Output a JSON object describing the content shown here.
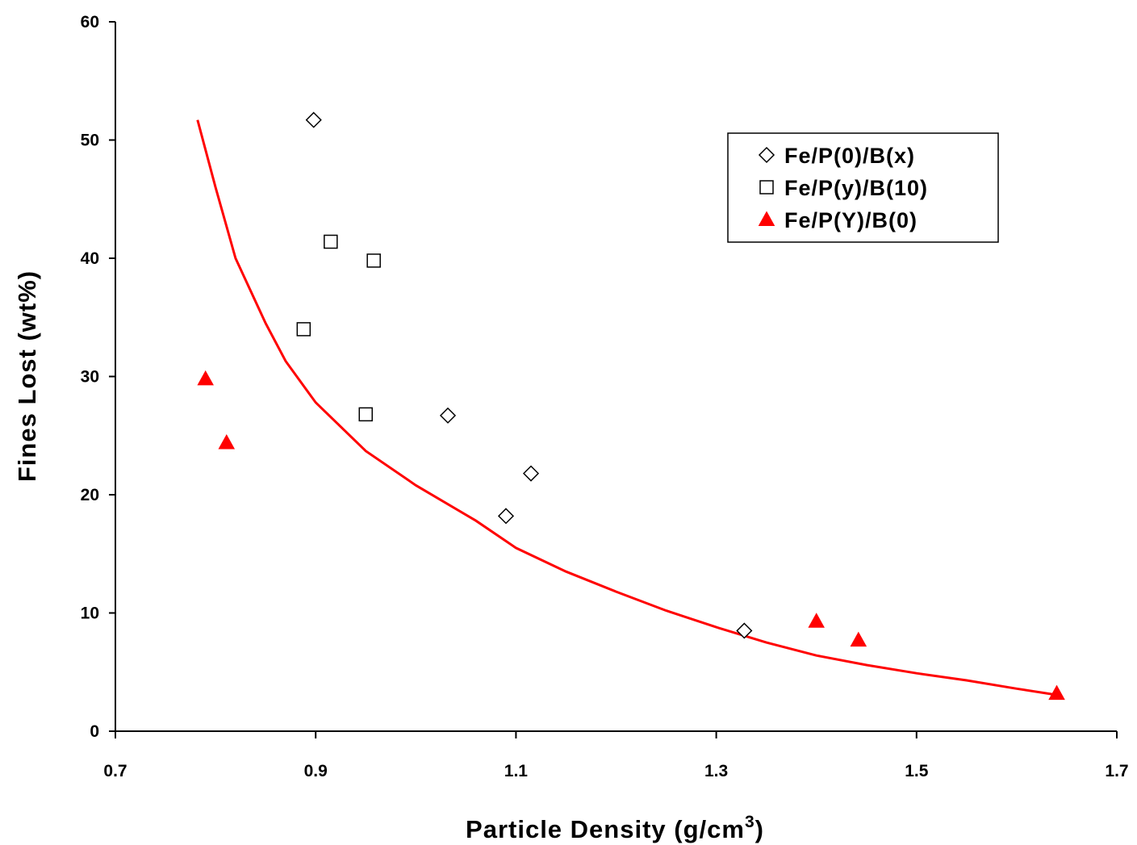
{
  "chart_data": {
    "type": "scatter",
    "title": "",
    "xlabel": "Particle Density (g/cm",
    "xlabel_superscript": "3",
    "xlabel_close": ")",
    "ylabel": "Fines Lost (wt%)",
    "xlim": [
      0.7,
      1.7
    ],
    "ylim": [
      0,
      60
    ],
    "x_ticks": [
      0.7,
      0.9,
      1.1,
      1.3,
      1.5,
      1.7
    ],
    "x_tick_labels": [
      "0.7",
      "0.9",
      "1.1",
      "1.3",
      "1.5",
      "1.7"
    ],
    "y_ticks": [
      0,
      10,
      20,
      30,
      40,
      50,
      60
    ],
    "y_tick_labels": [
      "0",
      "10",
      "20",
      "30",
      "40",
      "50",
      "60"
    ],
    "grid": false,
    "legend_position": "top-right",
    "series": [
      {
        "name": "Fe/P(0)/B(x)",
        "marker": "diamond",
        "color": "#000000",
        "filled": false,
        "points": [
          [
            0.898,
            51.7
          ],
          [
            1.032,
            26.7
          ],
          [
            1.09,
            18.2
          ],
          [
            1.115,
            21.8
          ],
          [
            1.328,
            8.5
          ]
        ]
      },
      {
        "name": "Fe/P(y)/B(10)",
        "marker": "square",
        "color": "#000000",
        "filled": false,
        "points": [
          [
            0.888,
            34.0
          ],
          [
            0.915,
            41.4
          ],
          [
            0.95,
            26.8
          ],
          [
            0.958,
            39.8
          ]
        ]
      },
      {
        "name": "Fe/P(Y)/B(0)",
        "marker": "triangle",
        "color": "#ff0000",
        "filled": true,
        "points": [
          [
            0.79,
            29.8
          ],
          [
            0.811,
            24.4
          ],
          [
            1.4,
            9.3
          ],
          [
            1.442,
            7.7
          ],
          [
            1.64,
            3.2
          ]
        ]
      }
    ],
    "fit_curve": {
      "color": "#ff0000",
      "points": [
        [
          0.782,
          51.7
        ],
        [
          0.8,
          46.0
        ],
        [
          0.82,
          40.0
        ],
        [
          0.85,
          34.5
        ],
        [
          0.87,
          31.3
        ],
        [
          0.9,
          27.8
        ],
        [
          0.95,
          23.7
        ],
        [
          1.0,
          20.8
        ],
        [
          1.06,
          17.8
        ],
        [
          1.1,
          15.5
        ],
        [
          1.15,
          13.5
        ],
        [
          1.2,
          11.8
        ],
        [
          1.25,
          10.2
        ],
        [
          1.3,
          8.8
        ],
        [
          1.35,
          7.5
        ],
        [
          1.4,
          6.4
        ],
        [
          1.45,
          5.6
        ],
        [
          1.5,
          4.9
        ],
        [
          1.55,
          4.3
        ],
        [
          1.6,
          3.6
        ],
        [
          1.645,
          3.0
        ]
      ]
    }
  }
}
